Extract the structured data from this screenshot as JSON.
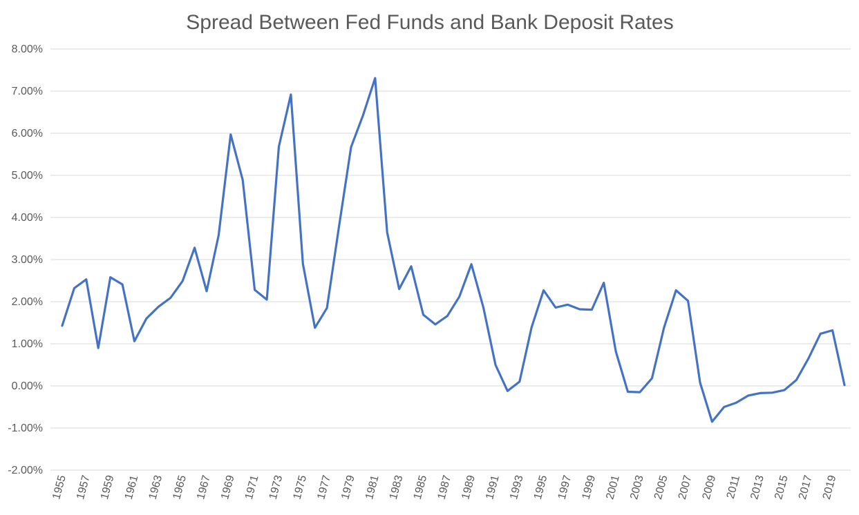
{
  "chart_data": {
    "type": "line",
    "title": "Spread Between Fed Funds and Bank Deposit Rates",
    "xlabel": "",
    "ylabel": "",
    "ylim": [
      -0.02,
      0.08
    ],
    "y_ticks": [
      -0.02,
      -0.01,
      0.0,
      0.01,
      0.02,
      0.03,
      0.04,
      0.05,
      0.06,
      0.07,
      0.08
    ],
    "y_tick_labels": [
      "-2.00%",
      "-1.00%",
      "0.00%",
      "1.00%",
      "2.00%",
      "3.00%",
      "4.00%",
      "5.00%",
      "6.00%",
      "7.00%",
      "8.00%"
    ],
    "x_tick_labels": [
      "1955",
      "1957",
      "1959",
      "1961",
      "1963",
      "1965",
      "1967",
      "1969",
      "1971",
      "1973",
      "1975",
      "1977",
      "1979",
      "1981",
      "1983",
      "1985",
      "1987",
      "1989",
      "1991",
      "1993",
      "1995",
      "1997",
      "1999",
      "2001",
      "2003",
      "2005",
      "2007",
      "2009",
      "2011",
      "2013",
      "2015",
      "2017",
      "2019"
    ],
    "grid": true,
    "legend": "none",
    "series_color": "#4472c4",
    "x": [
      1955,
      1956,
      1957,
      1958,
      1959,
      1960,
      1961,
      1962,
      1963,
      1964,
      1965,
      1966,
      1967,
      1968,
      1969,
      1970,
      1971,
      1972,
      1973,
      1974,
      1975,
      1976,
      1977,
      1978,
      1979,
      1980,
      1981,
      1982,
      1983,
      1984,
      1985,
      1986,
      1987,
      1988,
      1989,
      1990,
      1991,
      1992,
      1993,
      1994,
      1995,
      1996,
      1997,
      1998,
      1999,
      2000,
      2001,
      2002,
      2003,
      2004,
      2005,
      2006,
      2007,
      2008,
      2009,
      2010,
      2011,
      2012,
      2013,
      2014,
      2015,
      2016,
      2017,
      2018,
      2019,
      2020
    ],
    "values": [
      0.0143,
      0.0232,
      0.0253,
      0.009,
      0.0258,
      0.0241,
      0.0106,
      0.016,
      0.0188,
      0.0209,
      0.0249,
      0.0328,
      0.0225,
      0.0358,
      0.0597,
      0.0489,
      0.0228,
      0.0205,
      0.0568,
      0.0692,
      0.029,
      0.0138,
      0.0185,
      0.0379,
      0.0567,
      0.0643,
      0.0731,
      0.0365,
      0.023,
      0.0284,
      0.0169,
      0.0146,
      0.0166,
      0.0212,
      0.0289,
      0.0186,
      0.005,
      -0.0012,
      0.001,
      0.0139,
      0.0227,
      0.0186,
      0.0193,
      0.0182,
      0.0181,
      0.0245,
      0.0082,
      -0.0014,
      -0.0015,
      0.0018,
      0.0138,
      0.0227,
      0.0202,
      0.0008,
      -0.0085,
      -0.005,
      -0.004,
      -0.0023,
      -0.0017,
      -0.0016,
      -0.001,
      0.0014,
      0.0065,
      0.0124,
      0.0132,
      0.0002
    ]
  }
}
